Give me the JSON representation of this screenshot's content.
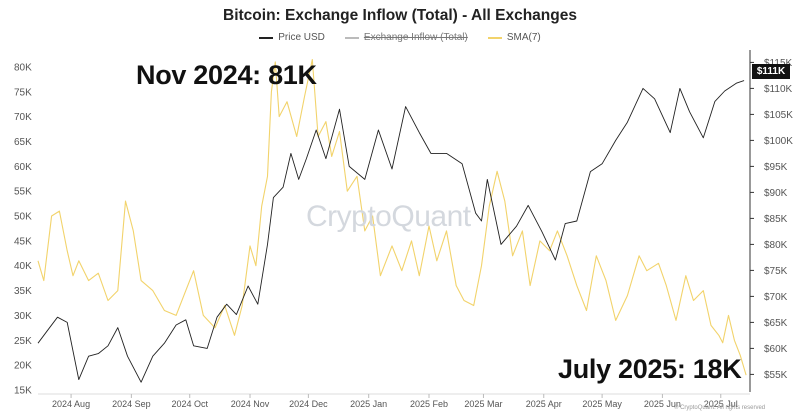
{
  "chart_data": {
    "type": "line",
    "title": "Bitcoin: Exchange Inflow (Total) - All Exchanges",
    "x_ticks": [
      "2024 Aug",
      "2024 Sep",
      "2024 Oct",
      "2024 Nov",
      "2024 Dec",
      "2025 Jan",
      "2025 Feb",
      "2025 Mar",
      "2025 Apr",
      "2025 May",
      "2025 Jun",
      "2025 Jul"
    ],
    "x_range": [
      "2024-07-15",
      "2025-07-15"
    ],
    "y_left": {
      "ticks": [
        "15K",
        "20K",
        "25K",
        "30K",
        "35K",
        "40K",
        "45K",
        "50K",
        "55K",
        "60K",
        "65K",
        "70K",
        "75K",
        "80K"
      ],
      "min": 15000,
      "max": 83000
    },
    "y_right": {
      "ticks": [
        "$55K",
        "$60K",
        "$65K",
        "$70K",
        "$75K",
        "$80K",
        "$85K",
        "$90K",
        "$95K",
        "$100K",
        "$105K",
        "$110K",
        "$115K"
      ],
      "min": 52000,
      "max": 117000
    },
    "series": [
      {
        "name": "Price USD",
        "axis": "right",
        "color": "#222222",
        "points": [
          [
            "2024-07-15",
            61000
          ],
          [
            "2024-07-20",
            63500
          ],
          [
            "2024-07-25",
            66000
          ],
          [
            "2024-07-30",
            65000
          ],
          [
            "2024-08-05",
            54000
          ],
          [
            "2024-08-10",
            58500
          ],
          [
            "2024-08-15",
            59000
          ],
          [
            "2024-08-20",
            60500
          ],
          [
            "2024-08-25",
            64000
          ],
          [
            "2024-08-30",
            58500
          ],
          [
            "2024-09-06",
            53500
          ],
          [
            "2024-09-12",
            58500
          ],
          [
            "2024-09-18",
            61000
          ],
          [
            "2024-09-24",
            64500
          ],
          [
            "2024-09-29",
            65500
          ],
          [
            "2024-10-03",
            60500
          ],
          [
            "2024-10-10",
            60000
          ],
          [
            "2024-10-15",
            66000
          ],
          [
            "2024-10-20",
            68500
          ],
          [
            "2024-10-25",
            66500
          ],
          [
            "2024-10-31",
            72000
          ],
          [
            "2024-11-05",
            68500
          ],
          [
            "2024-11-10",
            80000
          ],
          [
            "2024-11-13",
            89000
          ],
          [
            "2024-11-18",
            91000
          ],
          [
            "2024-11-22",
            97500
          ],
          [
            "2024-11-26",
            92500
          ],
          [
            "2024-11-30",
            96500
          ],
          [
            "2024-12-05",
            102000
          ],
          [
            "2024-12-10",
            96500
          ],
          [
            "2024-12-17",
            106000
          ],
          [
            "2024-12-22",
            95000
          ],
          [
            "2024-12-30",
            92500
          ],
          [
            "2025-01-06",
            102000
          ],
          [
            "2025-01-13",
            94500
          ],
          [
            "2025-01-20",
            106500
          ],
          [
            "2025-01-27",
            101500
          ],
          [
            "2025-02-02",
            97500
          ],
          [
            "2025-02-10",
            97500
          ],
          [
            "2025-02-18",
            95500
          ],
          [
            "2025-02-25",
            86000
          ],
          [
            "2025-02-28",
            84500
          ],
          [
            "2025-03-03",
            92500
          ],
          [
            "2025-03-10",
            80000
          ],
          [
            "2025-03-18",
            83500
          ],
          [
            "2025-03-24",
            87500
          ],
          [
            "2025-03-31",
            82500
          ],
          [
            "2025-04-07",
            77000
          ],
          [
            "2025-04-12",
            84000
          ],
          [
            "2025-04-18",
            84500
          ],
          [
            "2025-04-25",
            94000
          ],
          [
            "2025-05-01",
            95500
          ],
          [
            "2025-05-08",
            100000
          ],
          [
            "2025-05-14",
            103500
          ],
          [
            "2025-05-22",
            110000
          ],
          [
            "2025-05-28",
            108000
          ],
          [
            "2025-06-05",
            101500
          ],
          [
            "2025-06-10",
            110000
          ],
          [
            "2025-06-15",
            105500
          ],
          [
            "2025-06-22",
            100500
          ],
          [
            "2025-06-28",
            107500
          ],
          [
            "2025-07-03",
            109500
          ],
          [
            "2025-07-09",
            111000
          ],
          [
            "2025-07-13",
            111500
          ]
        ]
      },
      {
        "name": "Exchange Inflow (Total)",
        "axis": "left",
        "color": "#999999",
        "hidden": true,
        "points": []
      },
      {
        "name": "SMA(7)",
        "axis": "left",
        "color": "#f2d36b",
        "points": [
          [
            "2024-07-15",
            41000
          ],
          [
            "2024-07-18",
            37000
          ],
          [
            "2024-07-22",
            50000
          ],
          [
            "2024-07-26",
            51000
          ],
          [
            "2024-07-30",
            43000
          ],
          [
            "2024-08-02",
            38000
          ],
          [
            "2024-08-05",
            41000
          ],
          [
            "2024-08-10",
            37000
          ],
          [
            "2024-08-15",
            38500
          ],
          [
            "2024-08-20",
            33000
          ],
          [
            "2024-08-25",
            35000
          ],
          [
            "2024-08-29",
            53000
          ],
          [
            "2024-09-02",
            47000
          ],
          [
            "2024-09-06",
            37000
          ],
          [
            "2024-09-12",
            35000
          ],
          [
            "2024-09-18",
            31000
          ],
          [
            "2024-09-24",
            30000
          ],
          [
            "2024-09-29",
            35000
          ],
          [
            "2024-10-03",
            39000
          ],
          [
            "2024-10-08",
            30000
          ],
          [
            "2024-10-14",
            27500
          ],
          [
            "2024-10-19",
            32000
          ],
          [
            "2024-10-24",
            26000
          ],
          [
            "2024-10-28",
            32000
          ],
          [
            "2024-11-01",
            44000
          ],
          [
            "2024-11-04",
            40000
          ],
          [
            "2024-11-07",
            52000
          ],
          [
            "2024-11-10",
            58000
          ],
          [
            "2024-11-12",
            75000
          ],
          [
            "2024-11-14",
            81000
          ],
          [
            "2024-11-16",
            70000
          ],
          [
            "2024-11-20",
            73000
          ],
          [
            "2024-11-25",
            66000
          ],
          [
            "2024-11-29",
            74000
          ],
          [
            "2024-12-03",
            81500
          ],
          [
            "2024-12-06",
            66000
          ],
          [
            "2024-12-10",
            69000
          ],
          [
            "2024-12-13",
            62000
          ],
          [
            "2024-12-17",
            67000
          ],
          [
            "2024-12-21",
            55000
          ],
          [
            "2024-12-26",
            58000
          ],
          [
            "2024-12-30",
            47000
          ],
          [
            "2025-01-03",
            50000
          ],
          [
            "2025-01-07",
            38000
          ],
          [
            "2025-01-13",
            44000
          ],
          [
            "2025-01-18",
            39000
          ],
          [
            "2025-01-23",
            45000
          ],
          [
            "2025-01-27",
            38000
          ],
          [
            "2025-02-01",
            48000
          ],
          [
            "2025-02-05",
            41000
          ],
          [
            "2025-02-10",
            47000
          ],
          [
            "2025-02-15",
            36000
          ],
          [
            "2025-02-19",
            33000
          ],
          [
            "2025-02-24",
            32000
          ],
          [
            "2025-02-28",
            40000
          ],
          [
            "2025-03-04",
            52000
          ],
          [
            "2025-03-08",
            59000
          ],
          [
            "2025-03-12",
            53000
          ],
          [
            "2025-03-16",
            42000
          ],
          [
            "2025-03-21",
            47000
          ],
          [
            "2025-03-25",
            36000
          ],
          [
            "2025-03-30",
            45000
          ],
          [
            "2025-04-04",
            43000
          ],
          [
            "2025-04-08",
            47000
          ],
          [
            "2025-04-13",
            42000
          ],
          [
            "2025-04-18",
            36000
          ],
          [
            "2025-04-23",
            31000
          ],
          [
            "2025-04-28",
            42000
          ],
          [
            "2025-05-03",
            37000
          ],
          [
            "2025-05-08",
            29000
          ],
          [
            "2025-05-14",
            34000
          ],
          [
            "2025-05-20",
            42000
          ],
          [
            "2025-05-24",
            39000
          ],
          [
            "2025-05-30",
            40500
          ],
          [
            "2025-06-03",
            36000
          ],
          [
            "2025-06-08",
            29000
          ],
          [
            "2025-06-13",
            38000
          ],
          [
            "2025-06-17",
            33000
          ],
          [
            "2025-06-22",
            35000
          ],
          [
            "2025-06-26",
            28000
          ],
          [
            "2025-06-30",
            26000
          ],
          [
            "2025-07-02",
            24500
          ],
          [
            "2025-07-05",
            30000
          ],
          [
            "2025-07-08",
            25000
          ],
          [
            "2025-07-11",
            22000
          ],
          [
            "2025-07-14",
            18000
          ]
        ]
      }
    ],
    "annotations": [
      "Nov 2024: 81K",
      "July 2025: 18K"
    ],
    "current_price_label": "$111K",
    "watermark": "CryptoQuant",
    "copyright": "© CryptoQuant. All rights reserved",
    "grid": false,
    "legend_position": "top-center"
  }
}
